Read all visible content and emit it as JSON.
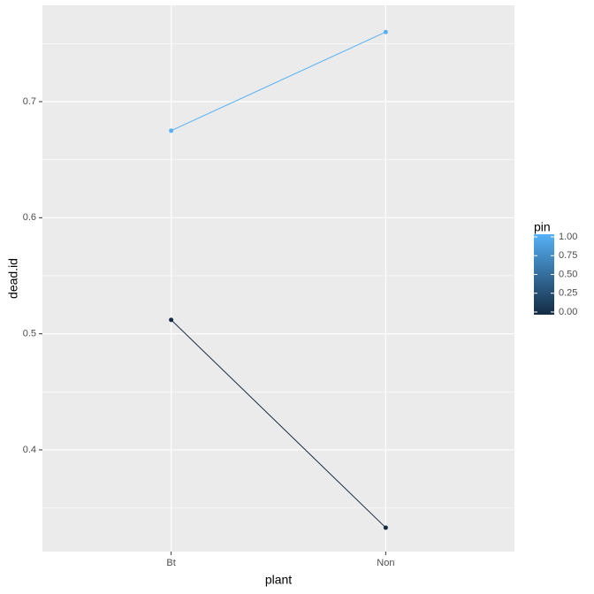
{
  "chart_data": {
    "type": "line",
    "x_label": "plant",
    "y_label": "dead.id",
    "categories": [
      "Bt",
      "Non"
    ],
    "series": [
      {
        "color": "#132B43",
        "values": [
          0.512,
          0.333
        ]
      },
      {
        "color": "#56B1F7",
        "values": [
          0.675,
          0.76
        ]
      }
    ],
    "ylim": [
      0.3124,
      0.783
    ],
    "yticks": [
      0.4,
      0.5,
      0.6,
      0.7
    ],
    "minor_yticks": [
      0.35,
      0.45,
      0.55,
      0.65,
      0.75
    ],
    "grid": true,
    "legend": {
      "title": "pin",
      "position": "right",
      "low_color": "#132B43",
      "high_color": "#56B1F7",
      "lim": [
        0,
        1
      ],
      "ticks": [
        {
          "value": 0,
          "label": "0.00"
        },
        {
          "value": 0.25,
          "label": "0.25"
        },
        {
          "value": 0.5,
          "label": "0.50"
        },
        {
          "value": 0.75,
          "label": "0.75"
        },
        {
          "value": 1,
          "label": "1.00"
        }
      ]
    }
  }
}
